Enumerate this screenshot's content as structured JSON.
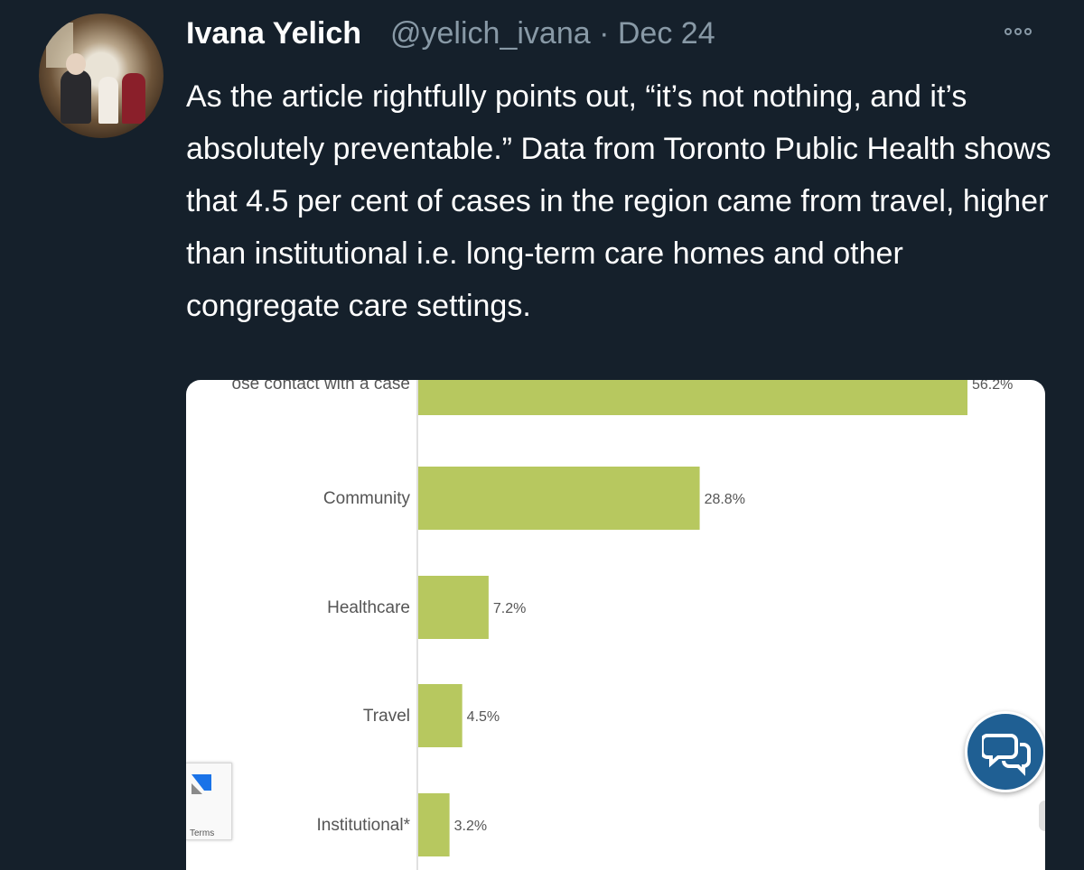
{
  "tweet": {
    "author_name": "Ivana Yelich",
    "handle": "@yelich_ivana",
    "separator": "·",
    "date": "Dec 24",
    "text": "As the article rightfully points out, “it’s not nothing, and it’s absolutely preventable.” Data from Toronto Public Health shows that 4.5 per cent of cases in the region came from travel, higher than institutional i.e. long-term care homes and other congregate care settings.",
    "icons": {
      "more": "more-options-icon",
      "chat": "chat-bubbles-icon",
      "recaptcha": "recaptcha-logo-icon"
    }
  },
  "media": {
    "recaptcha_terms": "Terms"
  },
  "chart_data": {
    "type": "bar",
    "orientation": "horizontal",
    "categories": [
      "ose contact with a case",
      "Community",
      "Healthcare",
      "Travel",
      "Institutional*"
    ],
    "values": [
      56.2,
      28.8,
      7.2,
      4.5,
      3.2
    ],
    "value_labels": [
      "56.2%",
      "28.8%",
      "7.2%",
      "4.5%",
      "3.2%"
    ],
    "bar_color": "#b7c85f",
    "xlim": [
      0,
      56.2
    ]
  }
}
